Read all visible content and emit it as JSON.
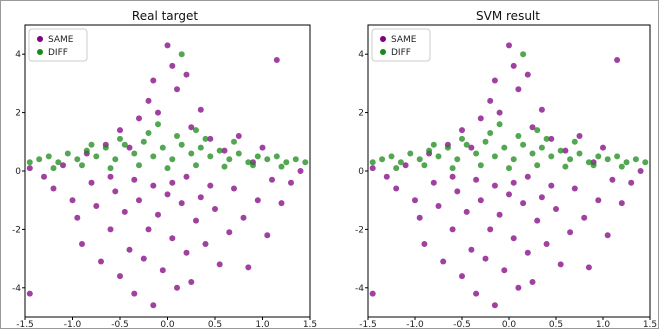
{
  "chart_data": [
    {
      "type": "scatter",
      "title": "Real target",
      "xlim": [
        -1.5,
        1.5
      ],
      "ylim": [
        -5,
        5
      ],
      "xticks": [
        "-1.5",
        "-1.0",
        "-0.5",
        "0.0",
        "0.5",
        "1.0",
        "1.5"
      ],
      "xtick_values": [
        -1.5,
        -1.0,
        -0.5,
        0.0,
        0.5,
        1.0,
        1.5
      ],
      "yticks": [
        "4",
        "2",
        "0",
        "-2",
        "-4"
      ],
      "ytick_values": [
        4,
        2,
        0,
        -2,
        -4
      ],
      "legend_position": "top-left",
      "series": [
        {
          "name": "SAME",
          "color": "#800080",
          "points": [
            [
              -1.45,
              0.1
            ],
            [
              -1.3,
              -0.2
            ],
            [
              -1.2,
              -0.6
            ],
            [
              -1.1,
              0.2
            ],
            [
              -1.0,
              -1.0
            ],
            [
              -0.95,
              -1.6
            ],
            [
              -0.9,
              -2.5
            ],
            [
              -0.85,
              0.6
            ],
            [
              -0.8,
              -0.4
            ],
            [
              -0.75,
              -1.2
            ],
            [
              -0.7,
              -3.1
            ],
            [
              -0.65,
              0.9
            ],
            [
              -0.6,
              -2.0
            ],
            [
              -0.55,
              -0.7
            ],
            [
              -0.5,
              1.4
            ],
            [
              -0.5,
              -3.6
            ],
            [
              -0.45,
              -1.4
            ],
            [
              -0.4,
              0.8
            ],
            [
              -0.4,
              -2.7
            ],
            [
              -0.35,
              -4.2
            ],
            [
              -0.3,
              1.8
            ],
            [
              -0.3,
              -1.0
            ],
            [
              -0.25,
              -3.0
            ],
            [
              -0.2,
              2.4
            ],
            [
              -0.2,
              -2.0
            ],
            [
              -0.15,
              3.1
            ],
            [
              -0.15,
              -4.6
            ],
            [
              -0.1,
              -1.5
            ],
            [
              -0.1,
              2.0
            ],
            [
              -0.05,
              -3.4
            ],
            [
              0.0,
              4.3
            ],
            [
              0.0,
              -0.8
            ],
            [
              0.05,
              3.6
            ],
            [
              0.05,
              -2.3
            ],
            [
              0.1,
              2.8
            ],
            [
              0.1,
              -4.0
            ],
            [
              0.15,
              -1.1
            ],
            [
              0.2,
              3.3
            ],
            [
              0.2,
              -2.8
            ],
            [
              0.25,
              1.5
            ],
            [
              0.25,
              -3.8
            ],
            [
              0.3,
              -1.7
            ],
            [
              0.35,
              2.1
            ],
            [
              0.35,
              -0.9
            ],
            [
              0.4,
              -2.5
            ],
            [
              0.45,
              1.1
            ],
            [
              0.5,
              -1.3
            ],
            [
              0.55,
              -3.2
            ],
            [
              0.6,
              0.7
            ],
            [
              0.65,
              -2.1
            ],
            [
              0.7,
              -0.6
            ],
            [
              0.75,
              1.2
            ],
            [
              0.8,
              -1.6
            ],
            [
              0.85,
              -3.3
            ],
            [
              0.9,
              0.3
            ],
            [
              0.95,
              -1.0
            ],
            [
              1.0,
              0.8
            ],
            [
              1.05,
              -2.2
            ],
            [
              1.1,
              -0.3
            ],
            [
              1.15,
              3.8
            ],
            [
              1.2,
              -1.1
            ],
            [
              1.3,
              -0.4
            ],
            [
              1.4,
              0.0
            ],
            [
              -0.35,
              -0.3
            ],
            [
              -0.15,
              -0.5
            ],
            [
              0.05,
              -0.4
            ],
            [
              0.2,
              -0.2
            ],
            [
              -0.6,
              -0.2
            ],
            [
              0.45,
              -0.5
            ],
            [
              -1.45,
              -4.2
            ]
          ]
        },
        {
          "name": "DIFF",
          "color": "#1a8a1a",
          "points": [
            [
              -1.45,
              0.3
            ],
            [
              -1.35,
              0.4
            ],
            [
              -1.25,
              0.5
            ],
            [
              -1.15,
              0.3
            ],
            [
              -1.05,
              0.6
            ],
            [
              -0.95,
              0.4
            ],
            [
              -0.85,
              0.7
            ],
            [
              -0.75,
              0.5
            ],
            [
              -0.65,
              0.8
            ],
            [
              -0.55,
              0.4
            ],
            [
              -0.45,
              0.9
            ],
            [
              -0.35,
              0.6
            ],
            [
              -0.25,
              1.0
            ],
            [
              -0.15,
              0.5
            ],
            [
              -0.05,
              0.8
            ],
            [
              0.05,
              0.4
            ],
            [
              0.15,
              0.9
            ],
            [
              0.25,
              0.6
            ],
            [
              0.35,
              0.8
            ],
            [
              0.45,
              0.5
            ],
            [
              0.55,
              0.7
            ],
            [
              0.65,
              0.4
            ],
            [
              0.75,
              0.6
            ],
            [
              0.85,
              0.3
            ],
            [
              0.95,
              0.5
            ],
            [
              1.05,
              0.4
            ],
            [
              1.15,
              0.5
            ],
            [
              1.25,
              0.3
            ],
            [
              1.35,
              0.4
            ],
            [
              1.45,
              0.3
            ],
            [
              -1.2,
              0.1
            ],
            [
              -0.9,
              0.2
            ],
            [
              -0.6,
              0.1
            ],
            [
              -0.3,
              0.2
            ],
            [
              0.0,
              0.1
            ],
            [
              0.3,
              0.2
            ],
            [
              0.6,
              0.15
            ],
            [
              0.9,
              0.2
            ],
            [
              1.2,
              0.15
            ],
            [
              -0.2,
              1.3
            ],
            [
              0.1,
              1.2
            ],
            [
              0.4,
              1.1
            ],
            [
              -0.5,
              1.1
            ],
            [
              0.7,
              1.0
            ],
            [
              -0.8,
              0.9
            ],
            [
              0.15,
              4.0
            ],
            [
              -0.1,
              1.6
            ],
            [
              0.3,
              1.4
            ]
          ]
        }
      ]
    },
    {
      "type": "scatter",
      "title": "SVM result",
      "xlim": [
        -1.5,
        1.5
      ],
      "ylim": [
        -5,
        5
      ],
      "xticks": [
        "-1.5",
        "-1.0",
        "-0.5",
        "0.0",
        "0.5",
        "1.0",
        "1.5"
      ],
      "xtick_values": [
        -1.5,
        -1.0,
        -0.5,
        0.0,
        0.5,
        1.0,
        1.5
      ],
      "yticks": [
        "4",
        "2",
        "0",
        "-2",
        "-4"
      ],
      "ytick_values": [
        4,
        2,
        0,
        -2,
        -4
      ],
      "legend_position": "top-left",
      "series": [
        {
          "name": "SAME",
          "color": "#800080",
          "points": [
            [
              -1.45,
              0.1
            ],
            [
              -1.3,
              -0.2
            ],
            [
              -1.2,
              -0.6
            ],
            [
              -1.1,
              0.2
            ],
            [
              -1.0,
              -1.0
            ],
            [
              -0.95,
              -1.6
            ],
            [
              -0.9,
              -2.5
            ],
            [
              -0.85,
              0.6
            ],
            [
              -0.8,
              -0.4
            ],
            [
              -0.75,
              -1.2
            ],
            [
              -0.7,
              -3.1
            ],
            [
              -0.65,
              0.9
            ],
            [
              -0.6,
              -2.0
            ],
            [
              -0.55,
              -0.7
            ],
            [
              -0.5,
              1.4
            ],
            [
              -0.5,
              -3.6
            ],
            [
              -0.45,
              -1.4
            ],
            [
              -0.4,
              0.8
            ],
            [
              -0.4,
              -2.7
            ],
            [
              -0.35,
              -4.2
            ],
            [
              -0.3,
              1.8
            ],
            [
              -0.3,
              -1.0
            ],
            [
              -0.25,
              -3.0
            ],
            [
              -0.2,
              2.4
            ],
            [
              -0.2,
              -2.0
            ],
            [
              -0.15,
              3.1
            ],
            [
              -0.15,
              -4.6
            ],
            [
              -0.1,
              -1.5
            ],
            [
              -0.1,
              2.0
            ],
            [
              -0.05,
              -3.4
            ],
            [
              0.0,
              4.3
            ],
            [
              0.0,
              -0.8
            ],
            [
              0.05,
              3.6
            ],
            [
              0.05,
              -2.3
            ],
            [
              0.1,
              2.8
            ],
            [
              0.1,
              -4.0
            ],
            [
              0.15,
              -1.1
            ],
            [
              0.2,
              3.3
            ],
            [
              0.2,
              -2.8
            ],
            [
              0.25,
              1.5
            ],
            [
              0.25,
              -3.8
            ],
            [
              0.3,
              -1.7
            ],
            [
              0.35,
              2.1
            ],
            [
              0.35,
              -0.9
            ],
            [
              0.4,
              -2.5
            ],
            [
              0.45,
              1.1
            ],
            [
              0.5,
              -1.3
            ],
            [
              0.55,
              -3.2
            ],
            [
              0.6,
              0.7
            ],
            [
              0.65,
              -2.1
            ],
            [
              0.7,
              -0.6
            ],
            [
              0.75,
              1.2
            ],
            [
              0.8,
              -1.6
            ],
            [
              0.85,
              -3.3
            ],
            [
              0.9,
              0.3
            ],
            [
              0.95,
              -1.0
            ],
            [
              1.0,
              0.8
            ],
            [
              1.05,
              -2.2
            ],
            [
              1.1,
              -0.3
            ],
            [
              1.15,
              3.8
            ],
            [
              1.2,
              -1.1
            ],
            [
              1.3,
              -0.4
            ],
            [
              1.4,
              0.0
            ],
            [
              -0.35,
              -0.3
            ],
            [
              -0.15,
              -0.5
            ],
            [
              0.05,
              -0.4
            ],
            [
              0.2,
              -0.2
            ],
            [
              -0.6,
              -0.2
            ],
            [
              0.45,
              -0.5
            ],
            [
              -1.45,
              -4.2
            ]
          ]
        },
        {
          "name": "DIFF",
          "color": "#1a8a1a",
          "points": [
            [
              -1.45,
              0.3
            ],
            [
              -1.35,
              0.4
            ],
            [
              -1.25,
              0.5
            ],
            [
              -1.15,
              0.3
            ],
            [
              -1.05,
              0.6
            ],
            [
              -0.95,
              0.4
            ],
            [
              -0.85,
              0.7
            ],
            [
              -0.75,
              0.5
            ],
            [
              -0.65,
              0.8
            ],
            [
              -0.55,
              0.4
            ],
            [
              -0.45,
              0.9
            ],
            [
              -0.35,
              0.6
            ],
            [
              -0.25,
              1.0
            ],
            [
              -0.15,
              0.5
            ],
            [
              -0.05,
              0.8
            ],
            [
              0.05,
              0.4
            ],
            [
              0.15,
              0.9
            ],
            [
              0.25,
              0.6
            ],
            [
              0.35,
              0.8
            ],
            [
              0.45,
              0.5
            ],
            [
              0.55,
              0.7
            ],
            [
              0.65,
              0.4
            ],
            [
              0.75,
              0.6
            ],
            [
              0.85,
              0.3
            ],
            [
              0.95,
              0.5
            ],
            [
              1.05,
              0.4
            ],
            [
              1.15,
              0.5
            ],
            [
              1.25,
              0.3
            ],
            [
              1.35,
              0.4
            ],
            [
              1.45,
              0.3
            ],
            [
              -1.2,
              0.1
            ],
            [
              -0.9,
              0.2
            ],
            [
              -0.6,
              0.1
            ],
            [
              -0.3,
              0.2
            ],
            [
              0.0,
              0.1
            ],
            [
              0.3,
              0.2
            ],
            [
              0.6,
              0.15
            ],
            [
              0.9,
              0.2
            ],
            [
              1.2,
              0.15
            ],
            [
              -0.2,
              1.3
            ],
            [
              0.1,
              1.2
            ],
            [
              0.4,
              1.1
            ],
            [
              -0.5,
              1.1
            ],
            [
              0.7,
              1.0
            ],
            [
              -0.8,
              0.9
            ],
            [
              0.15,
              4.0
            ],
            [
              -0.1,
              1.6
            ],
            [
              0.3,
              1.4
            ]
          ]
        }
      ]
    }
  ]
}
